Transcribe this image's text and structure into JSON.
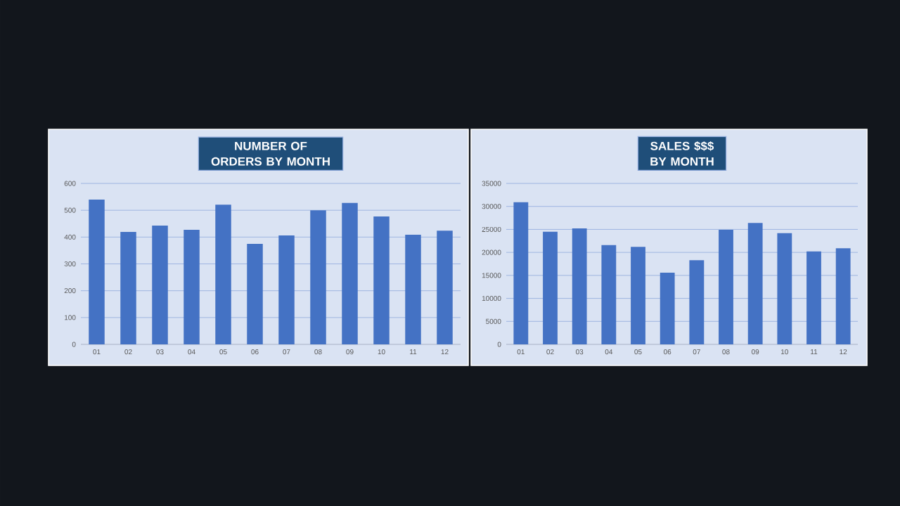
{
  "chart_data": [
    {
      "type": "bar",
      "title": "NUMBER OF ORDERS BY MONTH",
      "categories": [
        "01",
        "02",
        "03",
        "04",
        "05",
        "06",
        "07",
        "08",
        "09",
        "10",
        "11",
        "12"
      ],
      "values": [
        540,
        419,
        443,
        427,
        521,
        375,
        406,
        500,
        527,
        477,
        409,
        424
      ],
      "color": "#4472c4",
      "ylim": [
        0,
        600
      ],
      "yticks": [
        0,
        100,
        200,
        300,
        400,
        500,
        600
      ],
      "grid": "y"
    },
    {
      "type": "bar",
      "title": "SALES $$$ BY MONTH",
      "categories": [
        "01",
        "02",
        "03",
        "04",
        "05",
        "06",
        "07",
        "08",
        "09",
        "10",
        "11",
        "12"
      ],
      "values": [
        30900,
        24500,
        25200,
        21600,
        21200,
        15600,
        18300,
        24900,
        26400,
        24200,
        20200,
        20900
      ],
      "color": "#4472c4",
      "ylim": [
        0,
        35000
      ],
      "yticks": [
        0,
        5000,
        10000,
        15000,
        20000,
        25000,
        30000,
        35000
      ],
      "grid": "y"
    }
  ]
}
